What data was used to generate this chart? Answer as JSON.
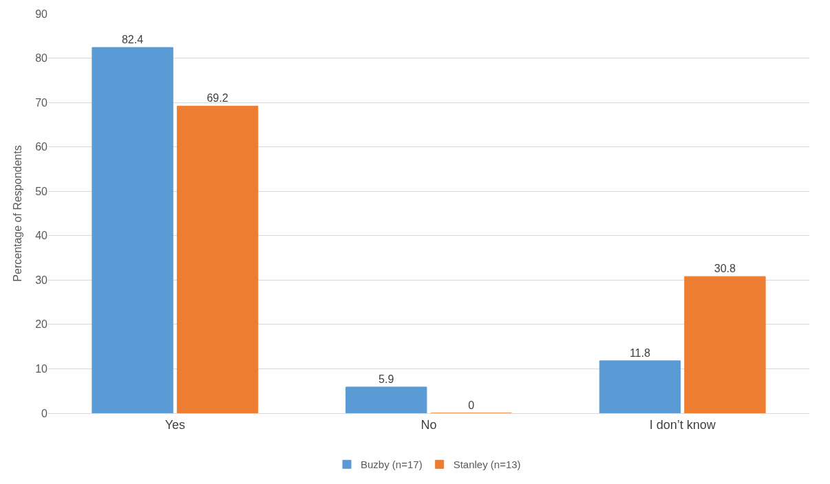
{
  "chart_data": {
    "type": "bar",
    "ylabel": "Percentage of Respondents",
    "categories": [
      "Yes",
      "No",
      "I don’t know"
    ],
    "series": [
      {
        "name": "Buzby (n=17)",
        "color": "#5b9bd5",
        "values": [
          82.4,
          5.9,
          11.8
        ]
      },
      {
        "name": "Stanley (n=13)",
        "color": "#ed7d31",
        "values": [
          69.2,
          0,
          30.8
        ]
      }
    ],
    "ylim": [
      0,
      90
    ],
    "yticks": [
      0,
      10,
      20,
      30,
      40,
      50,
      60,
      70,
      80,
      90
    ],
    "grid": "y",
    "legend": "bottom",
    "data_labels": true
  }
}
